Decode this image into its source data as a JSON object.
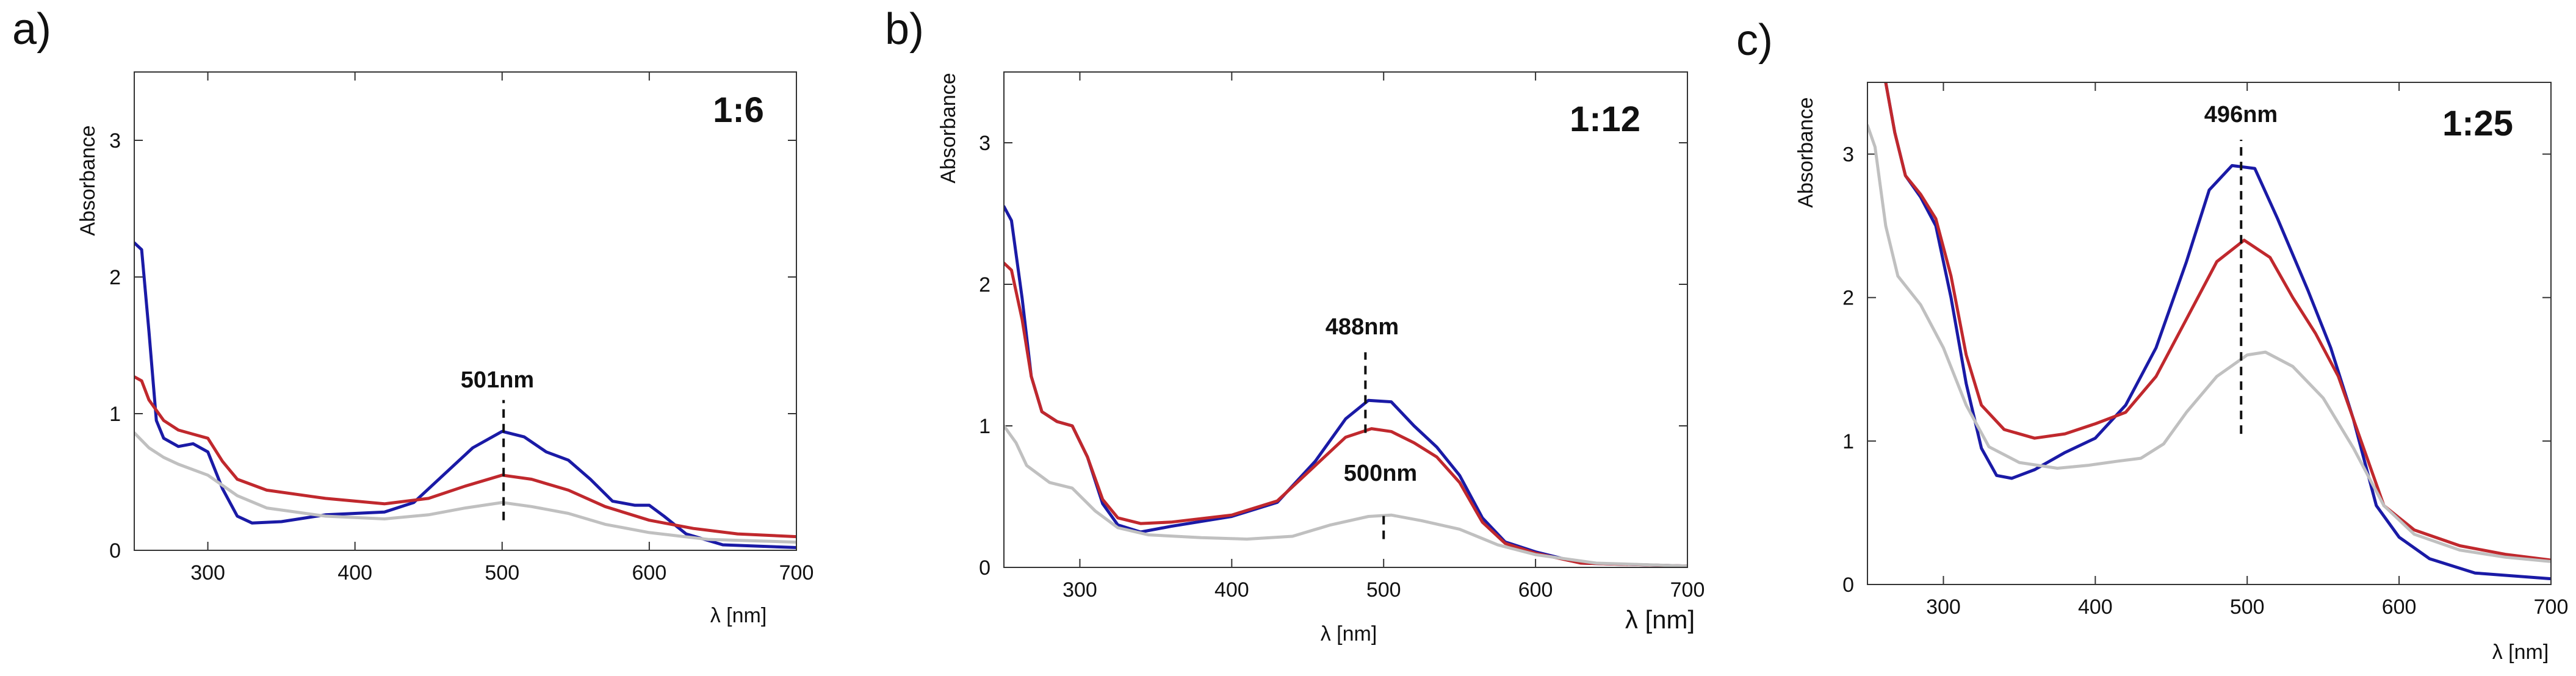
{
  "chart_data": [
    {
      "type": "line",
      "panel_label": "a)",
      "annotation": "1:6",
      "xlabel": "λ [nm]",
      "ylabel": "Absorbance",
      "xlim": [
        250,
        700
      ],
      "ylim": [
        0,
        3.5
      ],
      "xticks": [
        300,
        400,
        500,
        600,
        700
      ],
      "yticks": [
        0,
        1,
        2,
        3
      ],
      "series": [
        {
          "name": "blue",
          "color": "#1a1aa6",
          "points": [
            [
              250,
              2.25
            ],
            [
              255,
              2.2
            ],
            [
              260,
              1.6
            ],
            [
              265,
              0.95
            ],
            [
              270,
              0.82
            ],
            [
              280,
              0.76
            ],
            [
              290,
              0.78
            ],
            [
              300,
              0.72
            ],
            [
              310,
              0.45
            ],
            [
              320,
              0.25
            ],
            [
              330,
              0.2
            ],
            [
              350,
              0.21
            ],
            [
              380,
              0.26
            ],
            [
              420,
              0.28
            ],
            [
              440,
              0.35
            ],
            [
              460,
              0.55
            ],
            [
              480,
              0.75
            ],
            [
              500,
              0.87
            ],
            [
              515,
              0.83
            ],
            [
              530,
              0.72
            ],
            [
              545,
              0.66
            ],
            [
              560,
              0.52
            ],
            [
              575,
              0.36
            ],
            [
              590,
              0.33
            ],
            [
              600,
              0.33
            ],
            [
              610,
              0.25
            ],
            [
              625,
              0.12
            ],
            [
              650,
              0.04
            ],
            [
              700,
              0.02
            ]
          ]
        },
        {
          "name": "red",
          "color": "#c0282d",
          "points": [
            [
              250,
              1.27
            ],
            [
              255,
              1.24
            ],
            [
              260,
              1.1
            ],
            [
              270,
              0.95
            ],
            [
              280,
              0.88
            ],
            [
              290,
              0.85
            ],
            [
              300,
              0.82
            ],
            [
              310,
              0.65
            ],
            [
              320,
              0.52
            ],
            [
              340,
              0.44
            ],
            [
              380,
              0.38
            ],
            [
              420,
              0.34
            ],
            [
              450,
              0.38
            ],
            [
              475,
              0.47
            ],
            [
              500,
              0.55
            ],
            [
              520,
              0.52
            ],
            [
              545,
              0.44
            ],
            [
              570,
              0.32
            ],
            [
              600,
              0.22
            ],
            [
              630,
              0.16
            ],
            [
              660,
              0.12
            ],
            [
              700,
              0.1
            ]
          ]
        },
        {
          "name": "gray",
          "color": "#c0c0c0",
          "points": [
            [
              250,
              0.86
            ],
            [
              260,
              0.75
            ],
            [
              270,
              0.68
            ],
            [
              280,
              0.63
            ],
            [
              300,
              0.55
            ],
            [
              320,
              0.4
            ],
            [
              340,
              0.31
            ],
            [
              380,
              0.25
            ],
            [
              420,
              0.23
            ],
            [
              450,
              0.26
            ],
            [
              475,
              0.31
            ],
            [
              500,
              0.35
            ],
            [
              520,
              0.32
            ],
            [
              545,
              0.27
            ],
            [
              570,
              0.19
            ],
            [
              600,
              0.13
            ],
            [
              640,
              0.08
            ],
            [
              700,
              0.06
            ]
          ]
        }
      ],
      "peak": {
        "label": "501nm",
        "x": 501,
        "y_from": 0.22,
        "y_to": 1.1
      }
    },
    {
      "type": "line",
      "panel_label": "b)",
      "annotation": "1:12",
      "xlabel": "λ [nm]",
      "xlabel_outer": "λ [nm]",
      "ylabel": "Absorbance",
      "xlim": [
        250,
        700
      ],
      "ylim": [
        0,
        3.5
      ],
      "xticks": [
        300,
        400,
        500,
        600,
        700
      ],
      "yticks": [
        0,
        1,
        2,
        3
      ],
      "series": [
        {
          "name": "blue",
          "color": "#1a1aa6",
          "points": [
            [
              250,
              2.55
            ],
            [
              255,
              2.45
            ],
            [
              262,
              1.9
            ],
            [
              268,
              1.35
            ],
            [
              275,
              1.1
            ],
            [
              285,
              1.03
            ],
            [
              295,
              1.0
            ],
            [
              305,
              0.78
            ],
            [
              315,
              0.45
            ],
            [
              325,
              0.3
            ],
            [
              340,
              0.25
            ],
            [
              360,
              0.29
            ],
            [
              400,
              0.36
            ],
            [
              430,
              0.46
            ],
            [
              455,
              0.75
            ],
            [
              475,
              1.05
            ],
            [
              490,
              1.18
            ],
            [
              505,
              1.17
            ],
            [
              520,
              1.0
            ],
            [
              535,
              0.85
            ],
            [
              550,
              0.65
            ],
            [
              565,
              0.35
            ],
            [
              580,
              0.18
            ],
            [
              600,
              0.11
            ],
            [
              630,
              0.03
            ],
            [
              700,
              0.01
            ]
          ]
        },
        {
          "name": "red",
          "color": "#c0282d",
          "points": [
            [
              250,
              2.15
            ],
            [
              255,
              2.1
            ],
            [
              262,
              1.75
            ],
            [
              268,
              1.35
            ],
            [
              275,
              1.1
            ],
            [
              285,
              1.03
            ],
            [
              295,
              1.0
            ],
            [
              305,
              0.78
            ],
            [
              315,
              0.48
            ],
            [
              325,
              0.35
            ],
            [
              340,
              0.31
            ],
            [
              360,
              0.32
            ],
            [
              400,
              0.37
            ],
            [
              430,
              0.47
            ],
            [
              455,
              0.72
            ],
            [
              475,
              0.92
            ],
            [
              492,
              0.98
            ],
            [
              505,
              0.96
            ],
            [
              520,
              0.88
            ],
            [
              535,
              0.78
            ],
            [
              550,
              0.6
            ],
            [
              565,
              0.32
            ],
            [
              580,
              0.17
            ],
            [
              600,
              0.1
            ],
            [
              630,
              0.03
            ],
            [
              700,
              0.01
            ]
          ]
        },
        {
          "name": "gray",
          "color": "#c0c0c0",
          "points": [
            [
              250,
              1.0
            ],
            [
              258,
              0.88
            ],
            [
              265,
              0.72
            ],
            [
              280,
              0.6
            ],
            [
              295,
              0.56
            ],
            [
              310,
              0.4
            ],
            [
              325,
              0.28
            ],
            [
              345,
              0.23
            ],
            [
              380,
              0.21
            ],
            [
              410,
              0.2
            ],
            [
              440,
              0.22
            ],
            [
              465,
              0.3
            ],
            [
              490,
              0.36
            ],
            [
              505,
              0.37
            ],
            [
              525,
              0.33
            ],
            [
              550,
              0.27
            ],
            [
              575,
              0.16
            ],
            [
              600,
              0.09
            ],
            [
              640,
              0.03
            ],
            [
              700,
              0.01
            ]
          ]
        }
      ],
      "peak": {
        "label": "488nm",
        "x": 488,
        "y_from": 0.95,
        "y_to": 1.52
      },
      "peak2": {
        "label": "500nm",
        "x": 500,
        "y_from": 0.2,
        "y_to": 0.38
      }
    },
    {
      "type": "line",
      "panel_label": "c)",
      "annotation": "1:25",
      "xlabel": "λ [nm]",
      "ylabel": "Absorbance",
      "xlim": [
        250,
        700
      ],
      "ylim": [
        0,
        3.5
      ],
      "xticks": [
        300,
        400,
        500,
        600,
        700
      ],
      "yticks": [
        0,
        1,
        2,
        3
      ],
      "series": [
        {
          "name": "blue",
          "color": "#1a1aa6",
          "points": [
            [
              262,
              3.5
            ],
            [
              268,
              3.15
            ],
            [
              275,
              2.85
            ],
            [
              285,
              2.7
            ],
            [
              295,
              2.5
            ],
            [
              305,
              2.0
            ],
            [
              315,
              1.4
            ],
            [
              325,
              0.95
            ],
            [
              335,
              0.76
            ],
            [
              345,
              0.74
            ],
            [
              360,
              0.8
            ],
            [
              380,
              0.92
            ],
            [
              400,
              1.02
            ],
            [
              420,
              1.25
            ],
            [
              440,
              1.65
            ],
            [
              460,
              2.25
            ],
            [
              475,
              2.75
            ],
            [
              490,
              2.92
            ],
            [
              505,
              2.9
            ],
            [
              520,
              2.55
            ],
            [
              540,
              2.05
            ],
            [
              555,
              1.65
            ],
            [
              570,
              1.15
            ],
            [
              585,
              0.55
            ],
            [
              600,
              0.33
            ],
            [
              620,
              0.18
            ],
            [
              650,
              0.08
            ],
            [
              700,
              0.04
            ]
          ]
        },
        {
          "name": "red",
          "color": "#c0282d",
          "points": [
            [
              262,
              3.5
            ],
            [
              268,
              3.15
            ],
            [
              275,
              2.85
            ],
            [
              285,
              2.72
            ],
            [
              295,
              2.55
            ],
            [
              305,
              2.15
            ],
            [
              315,
              1.6
            ],
            [
              325,
              1.25
            ],
            [
              340,
              1.08
            ],
            [
              360,
              1.02
            ],
            [
              380,
              1.05
            ],
            [
              400,
              1.12
            ],
            [
              420,
              1.2
            ],
            [
              440,
              1.45
            ],
            [
              460,
              1.85
            ],
            [
              480,
              2.25
            ],
            [
              498,
              2.4
            ],
            [
              515,
              2.28
            ],
            [
              530,
              2.0
            ],
            [
              545,
              1.75
            ],
            [
              560,
              1.45
            ],
            [
              575,
              1.0
            ],
            [
              590,
              0.55
            ],
            [
              610,
              0.38
            ],
            [
              640,
              0.27
            ],
            [
              670,
              0.21
            ],
            [
              700,
              0.17
            ]
          ]
        },
        {
          "name": "gray",
          "color": "#c0c0c0",
          "points": [
            [
              250,
              3.2
            ],
            [
              255,
              3.05
            ],
            [
              262,
              2.5
            ],
            [
              270,
              2.15
            ],
            [
              285,
              1.95
            ],
            [
              300,
              1.65
            ],
            [
              315,
              1.25
            ],
            [
              330,
              0.96
            ],
            [
              350,
              0.85
            ],
            [
              375,
              0.81
            ],
            [
              395,
              0.83
            ],
            [
              415,
              0.86
            ],
            [
              430,
              0.88
            ],
            [
              445,
              0.98
            ],
            [
              460,
              1.2
            ],
            [
              480,
              1.45
            ],
            [
              500,
              1.6
            ],
            [
              512,
              1.62
            ],
            [
              530,
              1.52
            ],
            [
              550,
              1.3
            ],
            [
              570,
              0.95
            ],
            [
              590,
              0.55
            ],
            [
              610,
              0.35
            ],
            [
              640,
              0.24
            ],
            [
              670,
              0.19
            ],
            [
              700,
              0.16
            ]
          ]
        }
      ],
      "peak": {
        "label": "496nm",
        "x": 496,
        "y_from": 1.05,
        "y_to": 3.1
      }
    }
  ]
}
